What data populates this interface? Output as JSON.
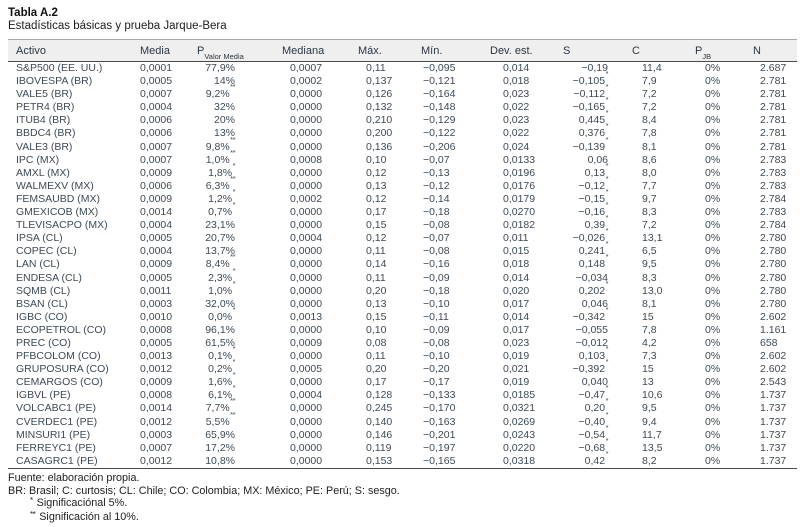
{
  "title": "Tabla A.2",
  "subtitle": "Estadísticas básicas y prueba Jarque-Bera",
  "table": {
    "columns": [
      {
        "text": "Activo"
      },
      {
        "text": "Media"
      },
      {
        "text": "P",
        "sub": "Valor Media"
      },
      {
        "text": "Mediana"
      },
      {
        "text": "Máx."
      },
      {
        "text": "Mín."
      },
      {
        "text": "Dev. est."
      },
      {
        "text": "S"
      },
      {
        "text": "C"
      },
      {
        "text": "P",
        "sub": "JB"
      },
      {
        "text": "N"
      }
    ],
    "rows": [
      [
        "S&P500 (EE. UU.)",
        "0,0001",
        "77,9%",
        "0,0007",
        "0,11",
        "−0,095",
        "0,014",
        "−0,19",
        "11,4",
        "0%",
        "2.687"
      ],
      [
        "IBOVESPA (BR)",
        "0,0005",
        "14%",
        "0,0002",
        "0,137",
        "−0,121",
        "0,018",
        "−0,105*",
        "7,9",
        "0%",
        "2.781"
      ],
      [
        "VALE5 (BR)",
        "0,0007",
        "9,2%**",
        "0,0000",
        "0,126",
        "−0,164",
        "0,023",
        "−0,112*",
        "7,2",
        "0%",
        "2.781"
      ],
      [
        "PETR4 (BR)",
        "0,0004",
        "32%",
        "0,0000",
        "0,132",
        "−0,148",
        "0,022",
        "−0,165*",
        "7,2",
        "0%",
        "2.781"
      ],
      [
        "ITUB4 (BR)",
        "0,0006",
        "20%",
        "0,0000",
        "0,210",
        "−0,129",
        "0,023",
        "0,445*",
        "8,4",
        "0%",
        "2.781"
      ],
      [
        "BBDC4 (BR)",
        "0,0006",
        "13%",
        "0,0000",
        "0,200",
        "−0,122",
        "0,022",
        "0,376*",
        "7,8",
        "0%",
        "2.781"
      ],
      [
        "VALE3 (BR)",
        "0,0007",
        "9,8%**",
        "0,0000",
        "0,136",
        "−0,206",
        "0,024",
        "−0,139*",
        "8,1",
        "0%",
        "2.781"
      ],
      [
        "IPC (MX)",
        "0,0007",
        "1,0%**",
        "0,0008",
        "0,10",
        "−0,07",
        "0,0133",
        "0,06",
        "8,6",
        "0%",
        "2.783"
      ],
      [
        "AMXL (MX)",
        "0,0009",
        "1,8%*",
        "0,0000",
        "0,12",
        "−0,13",
        "0,0196",
        "0,13*",
        "8,0",
        "0%",
        "2.783"
      ],
      [
        "WALMEXV (MX)",
        "0,0006",
        "6,3%**",
        "0,0000",
        "0,13",
        "−0,12",
        "0,0176",
        "−0,12*",
        "7,7",
        "0%",
        "2.783"
      ],
      [
        "FEMSAUBD (MX)",
        "0,0009",
        "1,2%*",
        "0,0002",
        "0,12",
        "−0,14",
        "0,0179",
        "−0,15*",
        "9,7",
        "0%",
        "2.784"
      ],
      [
        "GMEXICOB (MX)",
        "0,0014",
        "0,7%*",
        "0,0000",
        "0,17",
        "−0,18",
        "0,0270",
        "−0,16*",
        "8,3",
        "0%",
        "2.783"
      ],
      [
        "TLEVISACPO (MX)",
        "0,0004",
        "23,1%",
        "0,0000",
        "0,15",
        "−0,08",
        "0,0182",
        "0,39*",
        "7,2",
        "0%",
        "2.784"
      ],
      [
        "IPSA (CL)",
        "0,0005",
        "20,7%",
        "0,0004",
        "0,12",
        "−0,07",
        "0,011",
        "−0,026*",
        "13,1",
        "0%",
        "2.780"
      ],
      [
        "COPEC (CL)",
        "0,0004",
        "13,7%",
        "0,0000",
        "0,11",
        "−0,08",
        "0,015",
        "0,241*",
        "6,5",
        "0%",
        "2.780"
      ],
      [
        "LAN (CL)",
        "0,0009",
        "8,4%**",
        "0,0000",
        "0,14",
        "−0,16",
        "0,018",
        "0,148*",
        "9,5",
        "0%",
        "2.780"
      ],
      [
        "ENDESA (CL)",
        "0,0005",
        "2,3%*",
        "0,0000",
        "0,11",
        "−0,09",
        "0,014",
        "−0,034",
        "8,3",
        "0%",
        "2.780"
      ],
      [
        "SQMB (CL)",
        "0,0011",
        "1,0%*",
        "0,0000",
        "0,20",
        "−0,18",
        "0,020",
        "0,202*",
        "13,0",
        "0%",
        "2.780"
      ],
      [
        "BSAN (CL)",
        "0,0003",
        "32,0%",
        "0,0000",
        "0,13",
        "−0,10",
        "0,017",
        "0,046",
        "8,1",
        "0%",
        "2.780"
      ],
      [
        "IGBC (CO)",
        "0,0010",
        "0,0%*",
        "0,0013",
        "0,15",
        "−0,11",
        "0,014",
        "−0,342*",
        "15",
        "0%",
        "2.602"
      ],
      [
        "ECOPETROL (CO)",
        "0,0008",
        "96,1%",
        "0,0000",
        "0,10",
        "−0,09",
        "0,017",
        "−0,055",
        "7,8",
        "0%",
        "1.161"
      ],
      [
        "PREC (CO)",
        "0,0005",
        "61,5%",
        "0,0009",
        "0,08",
        "−0,08",
        "0,023",
        "−0,012",
        "4,2",
        "0%",
        "658"
      ],
      [
        "PFBCOLOM (CO)",
        "0,0013",
        "0,1%*",
        "0,0000",
        "0,11",
        "−0,10",
        "0,019",
        "0,103*",
        "7,3",
        "0%",
        "2.602"
      ],
      [
        "GRUPOSURA (CO)",
        "0,0012",
        "0,2%*",
        "0,0005",
        "0,20",
        "−0,20",
        "0,021",
        "−0,392*",
        "15",
        "0%",
        "2.602"
      ],
      [
        "CEMARGOS (CO)",
        "0,0009",
        "1,6%*",
        "0,0000",
        "0,17",
        "−0,17",
        "0,019",
        "0,040",
        "13",
        "0%",
        "2.543"
      ],
      [
        "IGBVL (PE)",
        "0,0008",
        "6,1%*",
        "0,0004",
        "0,128",
        "−0,133",
        "0,0185",
        "−0,47*",
        "10,6",
        "0%",
        "1.737"
      ],
      [
        "VOLCABC1 (PE)",
        "0,0014",
        "7,7%**",
        "0,0000",
        "0,245",
        "−0,170",
        "0,0321",
        "0,20*",
        "9,5",
        "0%",
        "1.737"
      ],
      [
        "CVERDEC1 (PE)",
        "0,0012",
        "5,5%**",
        "0,0000",
        "0,140",
        "−0,163",
        "0,0269",
        "−0,40*",
        "9,4",
        "0%",
        "1.737"
      ],
      [
        "MINSURI1 (PE)",
        "0,0003",
        "65,9%",
        "0,0000",
        "0,146",
        "−0,201",
        "0,0243",
        "−0,54*",
        "11,7",
        "0%",
        "1.737"
      ],
      [
        "FERREYC1 (PE)",
        "0,0007",
        "17,2%",
        "0,0000",
        "0,119",
        "−0,197",
        "0,0220",
        "−0,68*",
        "13,5",
        "0%",
        "1.737"
      ],
      [
        "CASAGRC1 (PE)",
        "0,0012",
        "10,8%",
        "0,0000",
        "0,153",
        "−0,165",
        "0,0318",
        "0,42*",
        "8,2",
        "0%",
        "1.737"
      ]
    ]
  },
  "footnotes": {
    "source": "Fuente: elaboración propia.",
    "abbreviations": "BR: Brasil; C: curtosis; CL: Chile; CO: Colombia; MX: México; PE: Perú; S: sesgo.",
    "note1": {
      "mark": "*",
      "text": "Significaciónal 5%."
    },
    "note2": {
      "mark": "**",
      "text": "Significación al 10%."
    }
  }
}
